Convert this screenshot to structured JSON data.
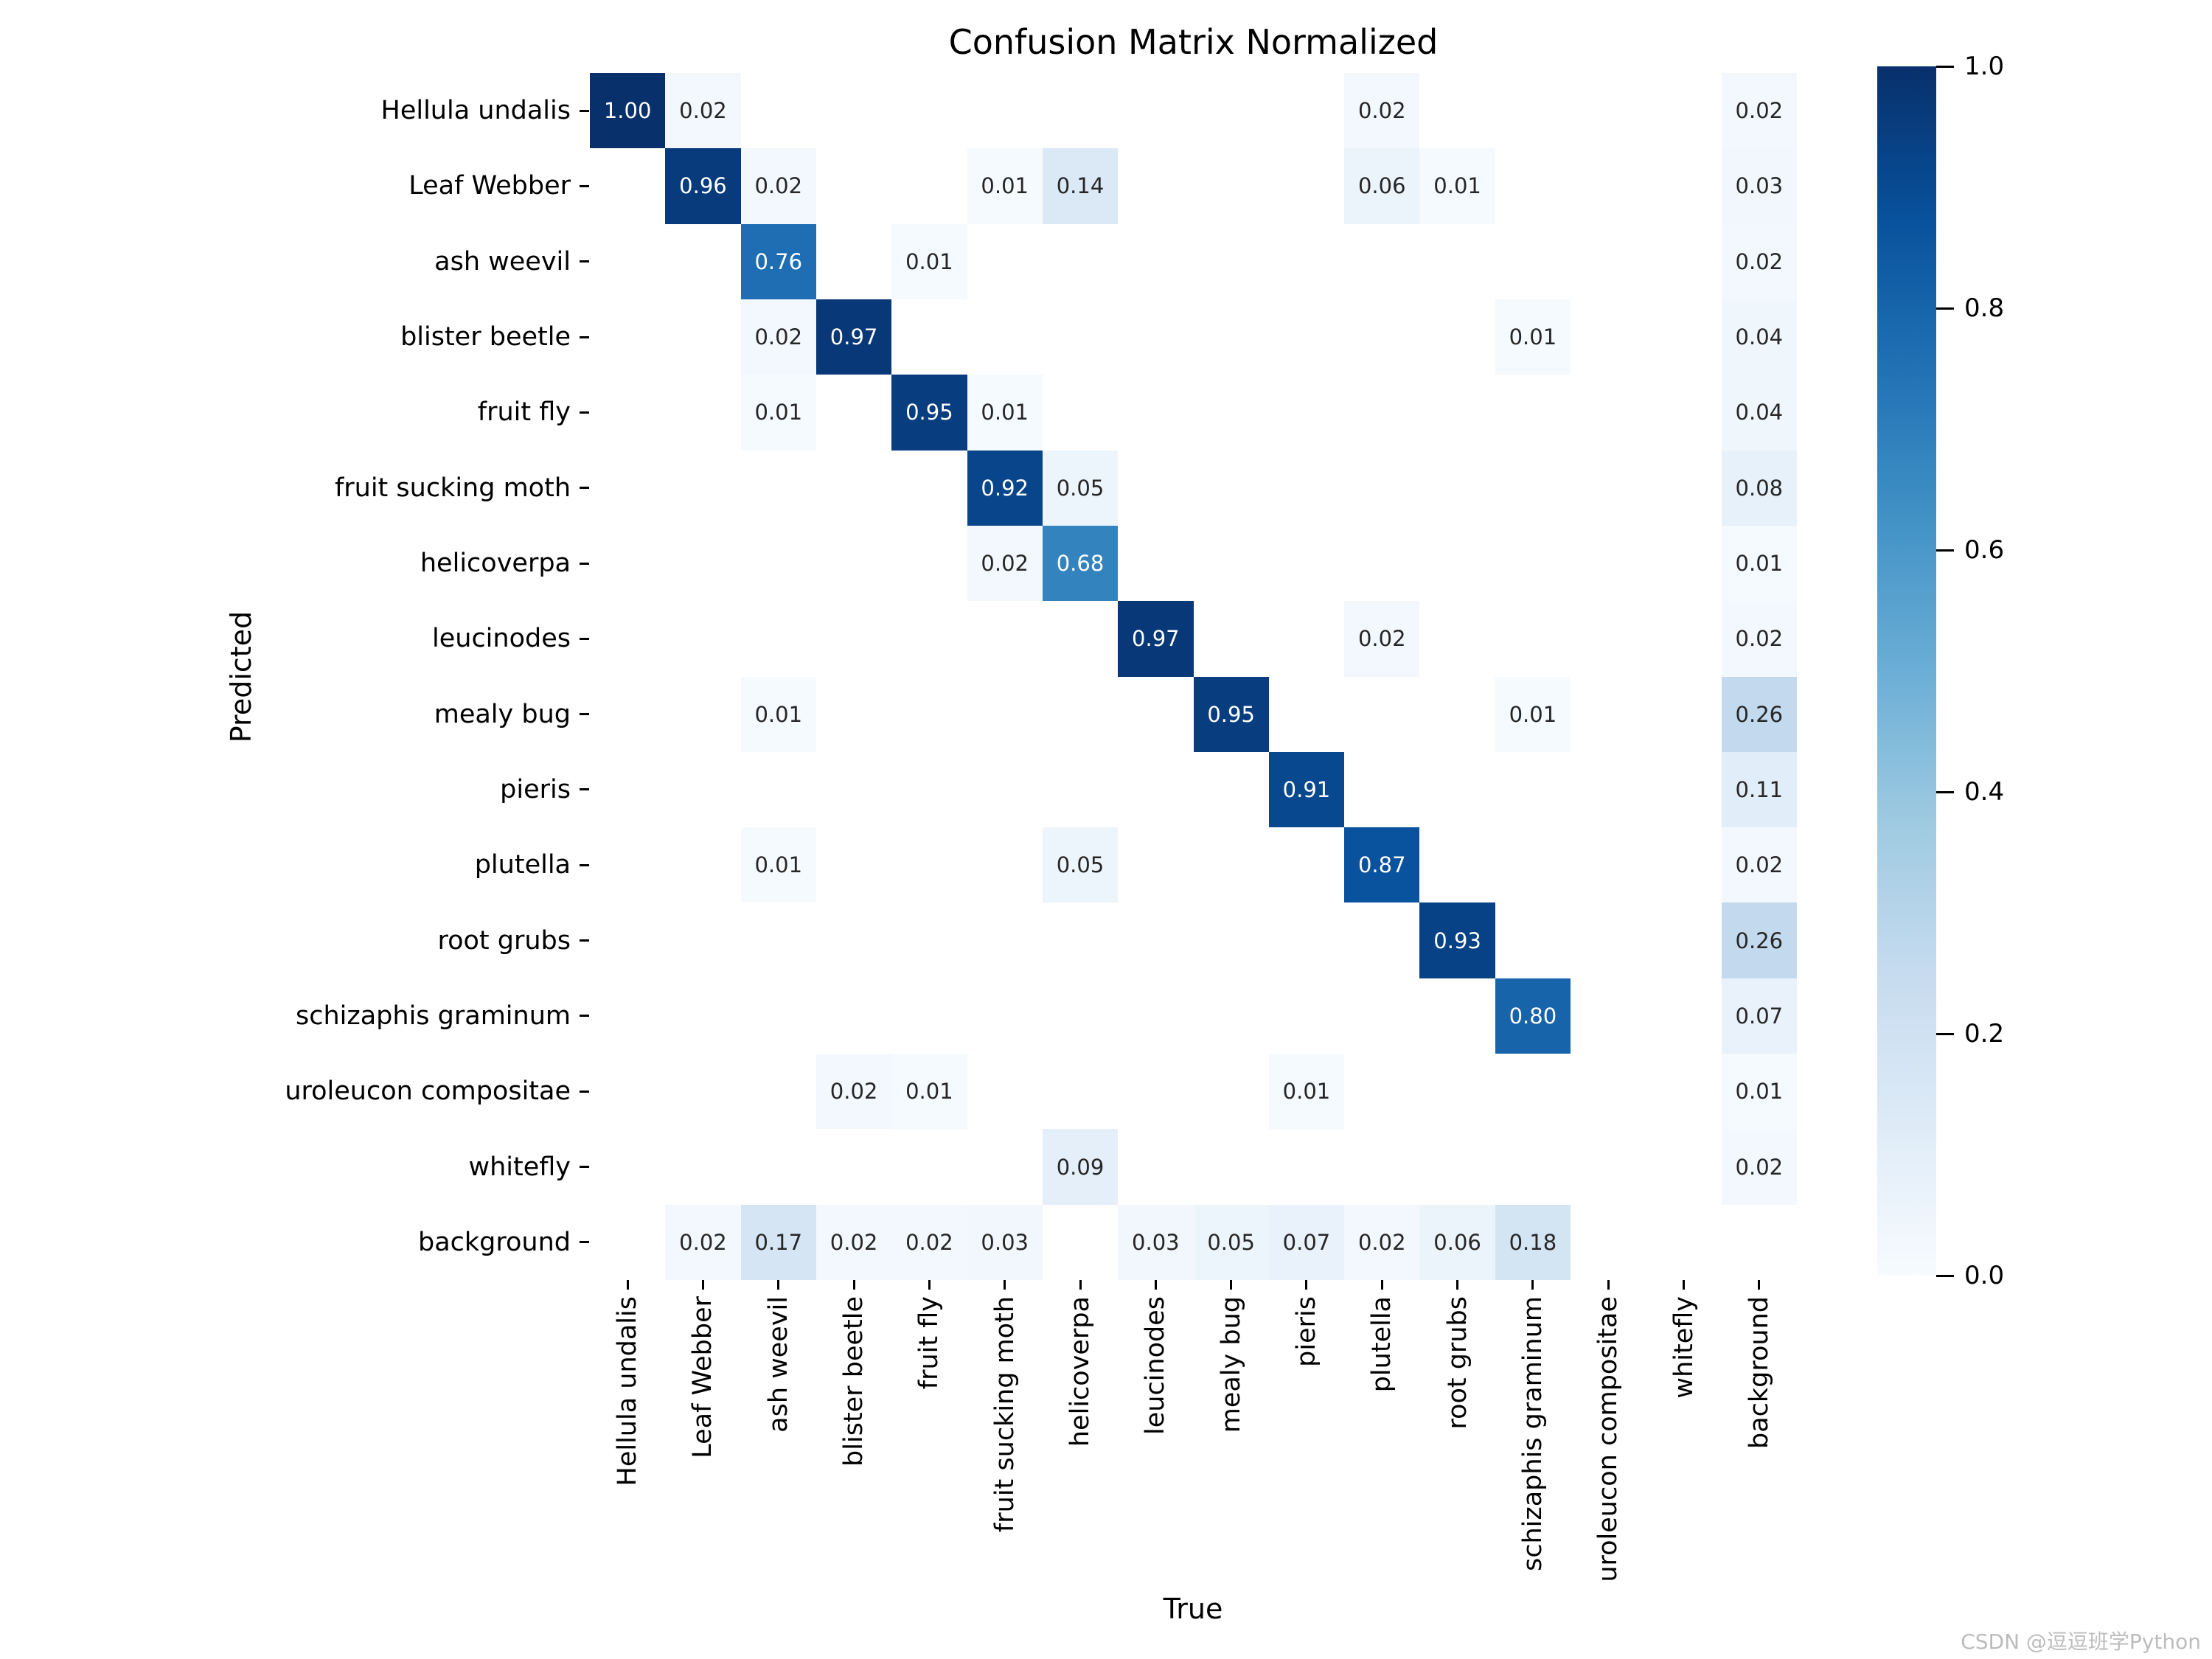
{
  "watermark": "CSDN @逗逗班学Python",
  "chart_data": {
    "type": "heatmap",
    "title": "Confusion Matrix Normalized",
    "xlabel": "True",
    "ylabel": "Predicted",
    "categories": [
      "Hellula undalis",
      "Leaf Webber",
      "ash weevil",
      "blister beetle",
      "fruit fly",
      "fruit sucking moth",
      "helicoverpa",
      "leucinodes",
      "mealy bug",
      "pieris",
      "plutella",
      "root grubs",
      "schizaphis graminum",
      "uroleucon compositae",
      "whitefly",
      "background"
    ],
    "rows_axis_meaning": "Predicted (y, top to bottom)",
    "cols_axis_meaning": "True (x, left to right)",
    "value_format": "2 decimals",
    "vmin": 0.0,
    "vmax": 1.0,
    "grid": false,
    "legend_position": "right colorbar",
    "colormap": "Blues",
    "colormap_stops": [
      "#f7fbff",
      "#deebf7",
      "#c6dbef",
      "#9ecae1",
      "#6baed6",
      "#4292c6",
      "#2171b5",
      "#08519c",
      "#08306b"
    ],
    "empty_cell_color": "#ffffff",
    "annot_dark_text": "#262626",
    "annot_light_text": "#ffffff",
    "colorbar_ticks": [
      "1.0",
      "0.8",
      "0.6",
      "0.4",
      "0.2",
      "0.0"
    ],
    "cells": [
      [
        1.0,
        0.02,
        null,
        null,
        null,
        null,
        null,
        null,
        null,
        null,
        0.02,
        null,
        null,
        null,
        null,
        0.02
      ],
      [
        null,
        0.96,
        0.02,
        null,
        null,
        0.01,
        0.14,
        null,
        null,
        null,
        0.06,
        0.01,
        null,
        null,
        null,
        0.03
      ],
      [
        null,
        null,
        0.76,
        null,
        0.01,
        null,
        null,
        null,
        null,
        null,
        null,
        null,
        null,
        null,
        null,
        0.02
      ],
      [
        null,
        null,
        0.02,
        0.97,
        null,
        null,
        null,
        null,
        null,
        null,
        null,
        null,
        0.01,
        null,
        null,
        0.04
      ],
      [
        null,
        null,
        0.01,
        null,
        0.95,
        0.01,
        null,
        null,
        null,
        null,
        null,
        null,
        null,
        null,
        null,
        0.04
      ],
      [
        null,
        null,
        null,
        null,
        null,
        0.92,
        0.05,
        null,
        null,
        null,
        null,
        null,
        null,
        null,
        null,
        0.08
      ],
      [
        null,
        null,
        null,
        null,
        null,
        0.02,
        0.68,
        null,
        null,
        null,
        null,
        null,
        null,
        null,
        null,
        0.01
      ],
      [
        null,
        null,
        null,
        null,
        null,
        null,
        null,
        0.97,
        null,
        null,
        0.02,
        null,
        null,
        null,
        null,
        0.02
      ],
      [
        null,
        null,
        0.01,
        null,
        null,
        null,
        null,
        null,
        0.95,
        null,
        null,
        null,
        0.01,
        null,
        null,
        0.26
      ],
      [
        null,
        null,
        null,
        null,
        null,
        null,
        null,
        null,
        null,
        0.91,
        null,
        null,
        null,
        null,
        null,
        0.11
      ],
      [
        null,
        null,
        0.01,
        null,
        null,
        null,
        0.05,
        null,
        null,
        null,
        0.87,
        null,
        null,
        null,
        null,
        0.02
      ],
      [
        null,
        null,
        null,
        null,
        null,
        null,
        null,
        null,
        null,
        null,
        null,
        0.93,
        null,
        null,
        null,
        0.26
      ],
      [
        null,
        null,
        null,
        null,
        null,
        null,
        null,
        null,
        null,
        null,
        null,
        null,
        0.8,
        null,
        null,
        0.07
      ],
      [
        null,
        null,
        null,
        0.02,
        0.01,
        null,
        null,
        null,
        null,
        0.01,
        null,
        null,
        null,
        null,
        null,
        0.01
      ],
      [
        null,
        null,
        null,
        null,
        null,
        null,
        0.09,
        null,
        null,
        null,
        null,
        null,
        null,
        null,
        null,
        0.02
      ],
      [
        null,
        0.02,
        0.17,
        0.02,
        0.02,
        0.03,
        null,
        0.03,
        0.05,
        0.07,
        0.02,
        0.06,
        0.18,
        null,
        null,
        null
      ]
    ]
  }
}
